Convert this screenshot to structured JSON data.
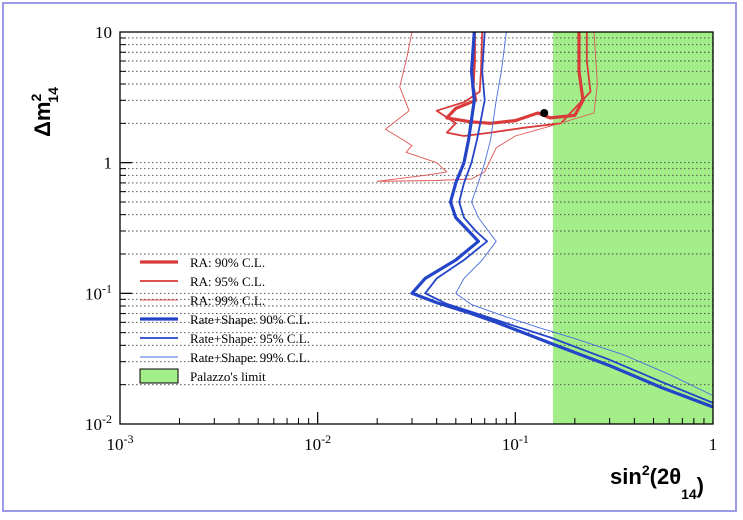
{
  "chart_data": {
    "type": "line",
    "xlabel": "sin²(2θ₁₄)",
    "ylabel": "Δm²₁₄",
    "x_scale": "log",
    "y_scale": "log",
    "xlim": [
      0.001,
      1
    ],
    "ylim": [
      0.01,
      10
    ],
    "x_ticks": [
      {
        "value": 0.001,
        "base": "10",
        "exp": "-3"
      },
      {
        "value": 0.01,
        "base": "10",
        "exp": "-2"
      },
      {
        "value": 0.1,
        "base": "10",
        "exp": "-1"
      },
      {
        "value": 1,
        "base": "1",
        "exp": ""
      }
    ],
    "y_ticks": [
      {
        "value": 0.01,
        "base": "10",
        "exp": "-2"
      },
      {
        "value": 0.1,
        "base": "10",
        "exp": "-1"
      },
      {
        "value": 1,
        "base": "1",
        "exp": ""
      },
      {
        "value": 10,
        "base": "10",
        "exp": ""
      }
    ],
    "grid": "dotted horizontal",
    "legend_position": "bottom-left",
    "region": {
      "name": "Palazzo's limit",
      "x_min": 0.155,
      "x_max": 1,
      "color": "#a4ee8a"
    },
    "best_fit_point": {
      "x": 0.14,
      "y": 2.4
    },
    "series": [
      {
        "name": "RA: 90% C.L.",
        "color": "#d93a3a",
        "width": 3.2,
        "points": [
          [
            0.062,
            10
          ],
          [
            0.062,
            6
          ],
          [
            0.061,
            3.8
          ],
          [
            0.063,
            3
          ],
          [
            0.05,
            2.6
          ],
          [
            0.045,
            2.2
          ],
          [
            0.06,
            2.05
          ],
          [
            0.075,
            2
          ],
          [
            0.1,
            2.1
          ],
          [
            0.13,
            2.4
          ],
          [
            0.15,
            2.2
          ],
          [
            0.2,
            2.3
          ],
          [
            0.22,
            3
          ],
          [
            0.21,
            5
          ],
          [
            0.21,
            10
          ]
        ]
      },
      {
        "name": "RA: 95% C.L.",
        "color": "#d93a3a",
        "width": 1.8,
        "points": [
          [
            0.068,
            10
          ],
          [
            0.067,
            5
          ],
          [
            0.066,
            3.5
          ],
          [
            0.055,
            2.9
          ],
          [
            0.04,
            2.5
          ],
          [
            0.05,
            2.0
          ],
          [
            0.045,
            1.7
          ],
          [
            0.055,
            1.6
          ],
          [
            0.075,
            1.7
          ],
          [
            0.11,
            1.85
          ],
          [
            0.17,
            2
          ],
          [
            0.2,
            2.6
          ],
          [
            0.24,
            3.5
          ],
          [
            0.23,
            6
          ],
          [
            0.23,
            10
          ]
        ]
      },
      {
        "name": "RA: 99% C.L.",
        "color": "#e05555",
        "width": 0.9,
        "points": [
          [
            0.03,
            10
          ],
          [
            0.028,
            6
          ],
          [
            0.026,
            3.8
          ],
          [
            0.029,
            2.5
          ],
          [
            0.022,
            1.8
          ],
          [
            0.027,
            1.5
          ],
          [
            0.03,
            1.35
          ],
          [
            0.028,
            1.2
          ],
          [
            0.04,
            1.0
          ],
          [
            0.045,
            0.85
          ],
          [
            0.035,
            0.8
          ],
          [
            0.02,
            0.72
          ],
          [
            0.04,
            0.73
          ],
          [
            0.06,
            0.75
          ],
          [
            0.07,
            0.85
          ],
          [
            0.08,
            1.3
          ],
          [
            0.1,
            1.6
          ],
          [
            0.15,
            1.9
          ],
          [
            0.25,
            2.4
          ],
          [
            0.26,
            4
          ],
          [
            0.25,
            10
          ]
        ]
      },
      {
        "name": "Rate+Shape: 90% C.L.",
        "color": "#2445c8",
        "width": 3.2,
        "points": [
          [
            0.062,
            10
          ],
          [
            0.06,
            5
          ],
          [
            0.062,
            3
          ],
          [
            0.058,
            1.5
          ],
          [
            0.055,
            1.0
          ],
          [
            0.05,
            0.7
          ],
          [
            0.047,
            0.5
          ],
          [
            0.05,
            0.38
          ],
          [
            0.058,
            0.3
          ],
          [
            0.065,
            0.25
          ],
          [
            0.05,
            0.18
          ],
          [
            0.035,
            0.13
          ],
          [
            0.03,
            0.1
          ],
          [
            0.04,
            0.085
          ],
          [
            0.06,
            0.07
          ],
          [
            0.08,
            0.06
          ],
          [
            0.11,
            0.05
          ],
          [
            0.16,
            0.04
          ],
          [
            0.3,
            0.028
          ],
          [
            0.55,
            0.019
          ],
          [
            1.0,
            0.0135
          ]
        ]
      },
      {
        "name": "Rate+Shape: 95% C.L.",
        "color": "#2445c8",
        "width": 1.8,
        "points": [
          [
            0.07,
            10
          ],
          [
            0.068,
            5
          ],
          [
            0.07,
            3
          ],
          [
            0.064,
            1.5
          ],
          [
            0.06,
            1.0
          ],
          [
            0.055,
            0.7
          ],
          [
            0.052,
            0.5
          ],
          [
            0.055,
            0.38
          ],
          [
            0.063,
            0.3
          ],
          [
            0.072,
            0.25
          ],
          [
            0.055,
            0.18
          ],
          [
            0.04,
            0.13
          ],
          [
            0.035,
            0.1
          ],
          [
            0.045,
            0.083
          ],
          [
            0.07,
            0.067
          ],
          [
            0.1,
            0.056
          ],
          [
            0.15,
            0.046
          ],
          [
            0.3,
            0.031
          ],
          [
            0.55,
            0.021
          ],
          [
            1.0,
            0.0145
          ]
        ]
      },
      {
        "name": "Rate+Shape: 99% C.L.",
        "color": "#4a6ee0",
        "width": 0.9,
        "points": [
          [
            0.09,
            10
          ],
          [
            0.085,
            5
          ],
          [
            0.08,
            3
          ],
          [
            0.075,
            1.5
          ],
          [
            0.07,
            1.0
          ],
          [
            0.065,
            0.7
          ],
          [
            0.06,
            0.5
          ],
          [
            0.065,
            0.38
          ],
          [
            0.073,
            0.3
          ],
          [
            0.08,
            0.25
          ],
          [
            0.068,
            0.18
          ],
          [
            0.055,
            0.13
          ],
          [
            0.05,
            0.1
          ],
          [
            0.06,
            0.082
          ],
          [
            0.09,
            0.066
          ],
          [
            0.13,
            0.055
          ],
          [
            0.2,
            0.045
          ],
          [
            0.35,
            0.034
          ],
          [
            0.6,
            0.024
          ],
          [
            1.0,
            0.0165
          ]
        ]
      }
    ],
    "legend": [
      {
        "label": "RA: 90% C.L.",
        "kind": "line",
        "color": "#d93a3a",
        "width": 3.2
      },
      {
        "label": "RA: 95% C.L.",
        "kind": "line",
        "color": "#d93a3a",
        "width": 1.8
      },
      {
        "label": "RA: 99% C.L.",
        "kind": "line",
        "color": "#e05555",
        "width": 0.9
      },
      {
        "label": "Rate+Shape: 90% C.L.",
        "kind": "line",
        "color": "#2445c8",
        "width": 3.2
      },
      {
        "label": "Rate+Shape: 95% C.L.",
        "kind": "line",
        "color": "#2445c8",
        "width": 1.8
      },
      {
        "label": "Rate+Shape: 99% C.L.",
        "kind": "line",
        "color": "#4a6ee0",
        "width": 0.9
      },
      {
        "label": "Palazzo's limit",
        "kind": "box",
        "color": "#a4ee8a"
      }
    ]
  }
}
